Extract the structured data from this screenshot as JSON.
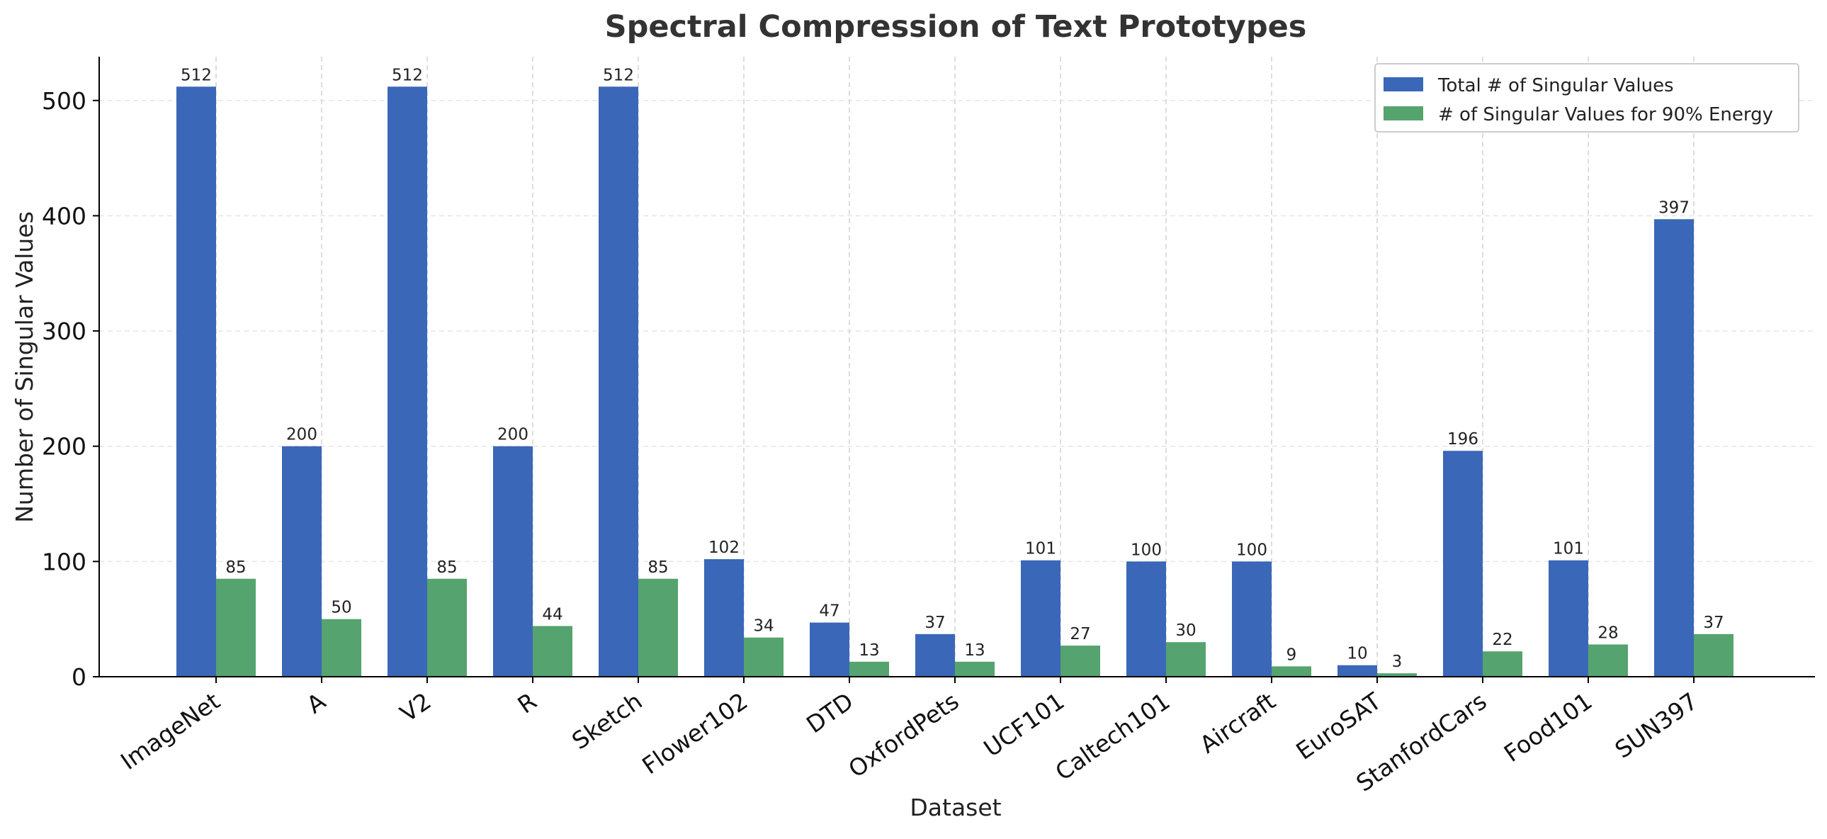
{
  "chart_data": {
    "type": "bar",
    "title": "Spectral Compression of Text Prototypes",
    "xlabel": "Dataset",
    "ylabel": "Number of Singular Values",
    "ylim": [
      0,
      538
    ],
    "yticks": [
      0,
      100,
      200,
      300,
      400,
      500
    ],
    "grid": true,
    "legend_position": "top-right",
    "categories": [
      "ImageNet",
      "A",
      "V2",
      "R",
      "Sketch",
      "Flower102",
      "DTD",
      "OxfordPets",
      "UCF101",
      "Caltech101",
      "Aircraft",
      "EuroSAT",
      "StanfordCars",
      "Food101",
      "SUN397"
    ],
    "series": [
      {
        "name": "Total # of Singular Values",
        "color": "#3a67b8",
        "values": [
          512,
          200,
          512,
          200,
          512,
          102,
          47,
          37,
          101,
          100,
          100,
          10,
          196,
          101,
          397
        ]
      },
      {
        "name": "# of Singular Values for 90% Energy",
        "color": "#55a36e",
        "values": [
          85,
          50,
          85,
          44,
          85,
          34,
          13,
          13,
          27,
          30,
          9,
          3,
          22,
          28,
          37
        ]
      }
    ]
  }
}
